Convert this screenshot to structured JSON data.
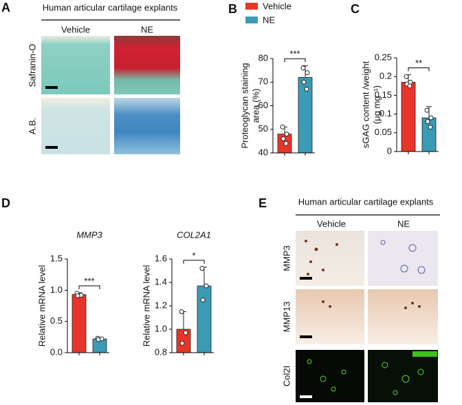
{
  "panel_letters": [
    "A",
    "B",
    "C",
    "D",
    "E"
  ],
  "panel_a": {
    "title": "Human articular cartilage explants",
    "columns": [
      "Vehicle",
      "NE"
    ],
    "rows": [
      "Safranin-O",
      "A.B."
    ]
  },
  "panel_e": {
    "title": "Human articular cartilage explants",
    "columns": [
      "Vehicle",
      "NE"
    ],
    "rows": [
      "MMP3",
      "MMP13",
      "Col2I"
    ]
  },
  "legend": [
    {
      "name": "Vehicle",
      "color": "#e8352a"
    },
    {
      "name": "NE",
      "color": "#3a9bb5"
    }
  ],
  "chart_data": [
    {
      "type": "bar",
      "ylabel": [
        "Proteoglycan staining",
        "area (%)"
      ],
      "values": [
        48,
        72
      ],
      "errors": [
        3,
        5
      ],
      "points": [
        [
          51,
          48,
          46,
          44
        ],
        [
          76,
          74,
          70,
          67
        ]
      ],
      "significance": "***",
      "ylim": [
        40,
        80
      ],
      "yticks": [
        40,
        50,
        60,
        70,
        80
      ]
    },
    {
      "type": "bar",
      "ylabel": [
        "sGAG content /weight",
        "(μg mg⁻¹)"
      ],
      "values": [
        0.185,
        0.09
      ],
      "errors": [
        0.02,
        0.03
      ],
      "points": [
        [
          0.2,
          0.185,
          0.18,
          0.175
        ],
        [
          0.11,
          0.09,
          0.08,
          0.065
        ]
      ],
      "significance": "**",
      "ylim": [
        0,
        0.25
      ],
      "yticks": [
        0,
        0.05,
        0.1,
        0.15,
        0.2,
        0.25
      ]
    },
    {
      "type": "bar",
      "title": "MMP3",
      "ylabel": [
        "Relative mRNA level"
      ],
      "values": [
        0.93,
        0.22
      ],
      "errors": [
        0.03,
        0.02
      ],
      "points": [
        [
          0.95,
          0.92,
          0.91
        ],
        [
          0.23,
          0.22,
          0.21
        ]
      ],
      "significance": "***",
      "ylim": [
        0,
        1.5
      ],
      "yticks": [
        {
          "value": 0,
          "label": "0.0"
        },
        0.5,
        {
          "value": 1,
          "label": "1.0"
        },
        1.5
      ]
    },
    {
      "type": "bar",
      "title": "COL2A1",
      "ylabel": [
        "Relative mRNA level"
      ],
      "values": [
        1.0,
        1.37
      ],
      "errors": [
        0.15,
        0.16
      ],
      "points": [
        [
          1.15,
          0.97,
          0.88
        ],
        [
          1.52,
          1.37,
          1.25
        ]
      ],
      "significance": "*",
      "ylim": [
        0.8,
        1.6
      ],
      "yticks": [
        0.8,
        {
          "value": 1,
          "label": "1.0"
        },
        1.2,
        1.4,
        1.6
      ]
    }
  ]
}
